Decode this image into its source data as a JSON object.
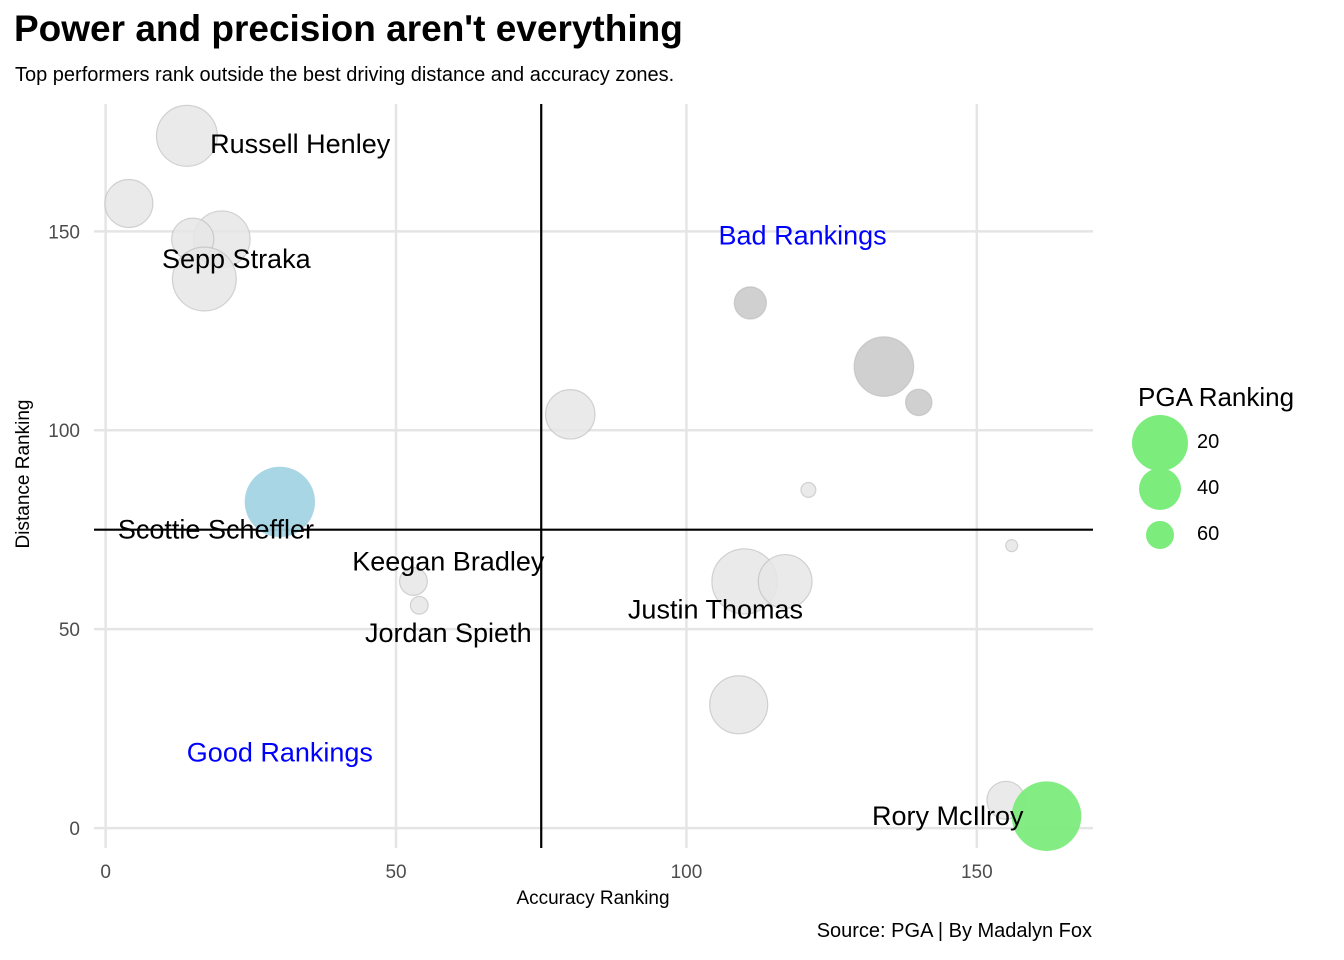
{
  "title": "Power and precision aren't everything",
  "subtitle": "Top performers rank outside the best driving distance and accuracy zones.",
  "caption": "Source: PGA | By Madalyn Fox",
  "chart_data": {
    "type": "scatter",
    "xlabel": "Accuracy Ranking",
    "ylabel": "Distance Ranking",
    "xlim": [
      -2,
      170
    ],
    "ylim": [
      -5,
      182
    ],
    "x_ticks": [
      0,
      50,
      100,
      150
    ],
    "y_ticks": [
      0,
      50,
      100,
      150
    ],
    "grid": true,
    "reference_lines": {
      "x": 75,
      "y": 75
    },
    "size_variable": "PGA Ranking",
    "points": [
      {
        "x": 14,
        "y": 174,
        "rank": 14,
        "color": "#e6e6e6"
      },
      {
        "x": 4,
        "y": 157,
        "rank": 32,
        "color": "#e6e6e6"
      },
      {
        "x": 20,
        "y": 148,
        "rank": 20,
        "color": "#e6e6e6"
      },
      {
        "x": 15,
        "y": 148,
        "rank": 40,
        "color": "#e6e6e6"
      },
      {
        "x": 17,
        "y": 138,
        "rank": 10,
        "color": "#e6e6e6"
      },
      {
        "x": 111,
        "y": 132,
        "rank": 54,
        "color": "#c8c8c8"
      },
      {
        "x": 134,
        "y": 116,
        "rank": 16,
        "color": "#c8c8c8"
      },
      {
        "x": 140,
        "y": 107,
        "rank": 62,
        "color": "#c8c8c8"
      },
      {
        "x": 80,
        "y": 104,
        "rank": 30,
        "color": "#e6e6e6"
      },
      {
        "x": 121,
        "y": 85,
        "rank": 78,
        "color": "#e6e6e6"
      },
      {
        "x": 30,
        "y": 82,
        "rank": 1,
        "color": "#a3d4e4"
      },
      {
        "x": 156,
        "y": 71,
        "rank": 82,
        "color": "#e6e6e6"
      },
      {
        "x": 110,
        "y": 62,
        "rank": 8,
        "color": "#e6e6e6"
      },
      {
        "x": 117,
        "y": 62,
        "rank": 24,
        "color": "#e6e6e6"
      },
      {
        "x": 53,
        "y": 62,
        "rank": 60,
        "color": "#e6e6e6"
      },
      {
        "x": 54,
        "y": 56,
        "rank": 74,
        "color": "#e6e6e6"
      },
      {
        "x": 109,
        "y": 31,
        "rank": 18,
        "color": "#e6e6e6"
      },
      {
        "x": 155,
        "y": 7,
        "rank": 46,
        "color": "#e6e6e6"
      },
      {
        "x": 162,
        "y": 3,
        "rank": 2,
        "color": "#7CEC7C"
      }
    ],
    "annotations": [
      {
        "text": "Russell Henley",
        "x": 33.5,
        "y": 172,
        "color": "#000000"
      },
      {
        "text": "Sepp Straka",
        "x": 22.5,
        "y": 143,
        "color": "#000000"
      },
      {
        "text": "Scottie Scheffler",
        "x": 19,
        "y": 75,
        "color": "#000000"
      },
      {
        "text": "Keegan Bradley",
        "x": 59,
        "y": 67,
        "color": "#000000"
      },
      {
        "text": "Jordan Spieth",
        "x": 59,
        "y": 49,
        "color": "#000000"
      },
      {
        "text": "Justin Thomas",
        "x": 105,
        "y": 55,
        "color": "#000000"
      },
      {
        "text": "Rory McIlroy",
        "x": 145,
        "y": 3,
        "color": "#000000"
      },
      {
        "text": "Bad Rankings",
        "x": 120,
        "y": 149,
        "color": "#0000ff"
      },
      {
        "text": "Good Rankings",
        "x": 30,
        "y": 19,
        "color": "#0000ff"
      }
    ]
  },
  "legend": {
    "title": "PGA Ranking",
    "color": "#7CEC7C",
    "items": [
      {
        "label": "20",
        "value": 20
      },
      {
        "label": "40",
        "value": 40
      },
      {
        "label": "60",
        "value": 60
      }
    ]
  }
}
